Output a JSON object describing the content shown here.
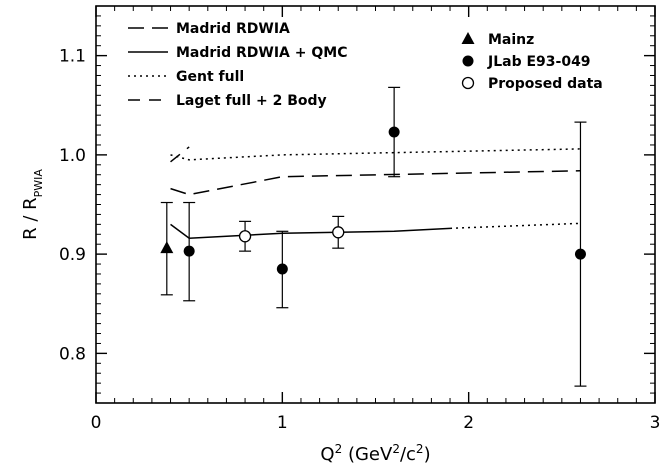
{
  "chart_data": {
    "type": "scatter",
    "title": "",
    "xlabel": "Q² (GeV²/c²)",
    "ylabel": "R / R_PWIA",
    "xlim": [
      0,
      3
    ],
    "ylim": [
      0.75,
      1.15
    ],
    "x_ticks": [
      0,
      1,
      2,
      3
    ],
    "x_tick_labels": [
      "0",
      "1",
      "2",
      "3"
    ],
    "y_ticks": [
      0.8,
      0.9,
      1.0,
      1.1
    ],
    "y_tick_labels": [
      "0.8",
      "0.9",
      "1.0",
      "1.1"
    ],
    "grid": false,
    "legend_placement": "top",
    "line_series": [
      {
        "name": "Madrid RDWIA",
        "style": "dashed",
        "x": [
          0.4,
          0.5,
          1.0,
          2.6
        ],
        "y": [
          0.966,
          0.96,
          0.978,
          0.984
        ]
      },
      {
        "name": "Madrid RDWIA + QMC",
        "style": "solid",
        "x": [
          0.4,
          0.5,
          1.0,
          1.6,
          1.9
        ],
        "y": [
          0.93,
          0.916,
          0.921,
          0.923,
          0.926
        ]
      },
      {
        "name": "",
        "style": "dotted",
        "x": [
          1.9,
          2.6
        ],
        "y": [
          0.926,
          0.931
        ]
      },
      {
        "name": "Gent full",
        "style": "dotted",
        "x": [
          0.4,
          0.5,
          1.0,
          2.6
        ],
        "y": [
          1.0,
          0.995,
          1.0,
          1.006
        ]
      },
      {
        "name": "Laget full + 2 Body",
        "style": "longdash",
        "x": [
          0.4,
          0.5
        ],
        "y": [
          0.993,
          1.008
        ]
      }
    ],
    "point_series": [
      {
        "name": "Mainz",
        "marker": "triangle",
        "points": [
          {
            "x": 0.38,
            "y": 0.906,
            "err_hi": 0.952,
            "err_lo": 0.859
          }
        ]
      },
      {
        "name": "JLab E93-049",
        "marker": "filled-circle",
        "points": [
          {
            "x": 0.5,
            "y": 0.903,
            "err_hi": 0.952,
            "err_lo": 0.853
          },
          {
            "x": 1.0,
            "y": 0.885,
            "err_hi": 0.923,
            "err_lo": 0.846
          },
          {
            "x": 1.6,
            "y": 1.023,
            "err_hi": 1.068,
            "err_lo": 0.978
          },
          {
            "x": 2.6,
            "y": 0.9,
            "err_hi": 1.033,
            "err_lo": 0.767
          }
        ]
      },
      {
        "name": "Proposed data",
        "marker": "open-circle",
        "points": [
          {
            "x": 0.8,
            "y": 0.918,
            "err_hi": 0.933,
            "err_lo": 0.903
          },
          {
            "x": 1.3,
            "y": 0.922,
            "err_hi": 0.938,
            "err_lo": 0.906
          }
        ]
      }
    ]
  }
}
